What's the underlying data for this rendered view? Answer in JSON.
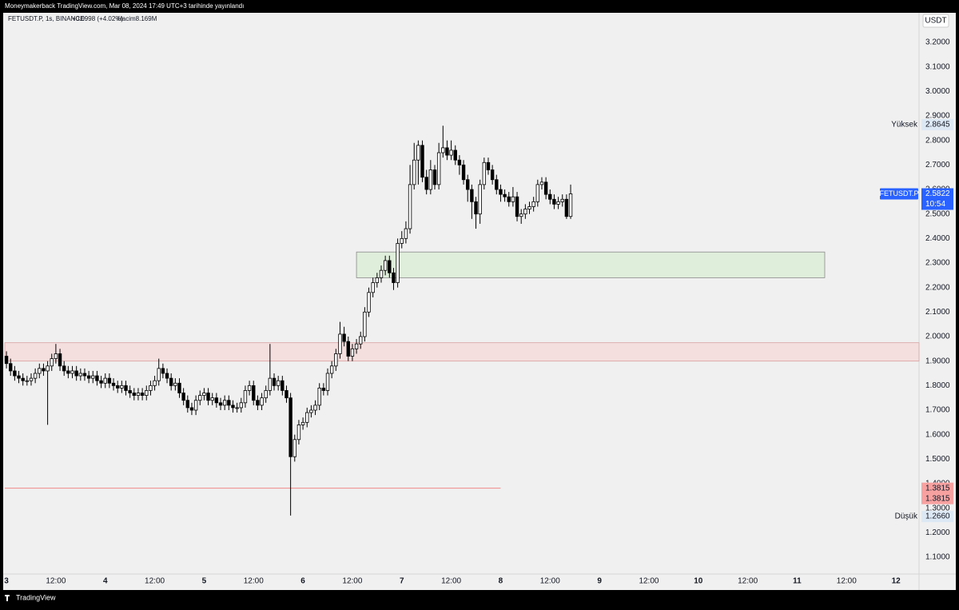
{
  "header": {
    "text": "Moneymakerback TradingView.com, Mar 08, 2024 17:49 UTC+3 tarihinde yayınlandı"
  },
  "footer": {
    "brand": "TradingView"
  },
  "chart_data": {
    "type": "candlestick",
    "title": "FETUSDT.P, 1s, BINANCE",
    "change": "+0.0998 (+4.02%)",
    "volume": "Hacim8.169M",
    "currency": "USDT",
    "up_color": "#ffffff",
    "down_color": "#000000",
    "open": [
      1.92,
      1.89,
      1.86,
      1.84,
      1.83,
      1.82,
      1.82,
      1.83,
      1.85,
      1.87,
      1.86,
      1.88,
      1.91,
      1.93,
      1.88,
      1.86,
      1.85,
      1.86,
      1.84,
      1.85,
      1.84,
      1.83,
      1.84,
      1.82,
      1.81,
      1.83,
      1.81,
      1.8,
      1.79,
      1.8,
      1.78,
      1.77,
      1.76,
      1.77,
      1.76,
      1.78,
      1.8,
      1.82,
      1.87,
      1.85,
      1.83,
      1.8,
      1.81,
      1.77,
      1.74,
      1.71,
      1.7,
      1.74,
      1.76,
      1.77,
      1.74,
      1.75,
      1.73,
      1.72,
      1.74,
      1.72,
      1.71,
      1.71,
      1.73,
      1.78,
      1.8,
      1.74,
      1.72,
      1.75,
      1.78,
      1.83,
      1.8,
      1.82,
      1.78,
      1.75,
      1.51,
      1.58,
      1.64,
      1.65,
      1.69,
      1.7,
      1.72,
      1.79,
      1.78,
      1.85,
      1.88,
      1.93,
      2.01,
      1.98,
      1.92,
      1.95,
      1.97,
      2.0,
      2.1,
      2.18,
      2.22,
      2.24,
      2.27,
      2.31,
      2.26,
      2.22,
      2.38,
      2.4,
      2.44,
      2.62,
      2.72,
      2.78,
      2.65,
      2.6,
      2.68,
      2.62,
      2.75,
      2.77,
      2.74,
      2.76,
      2.72,
      2.7,
      2.64,
      2.6,
      2.55,
      2.5,
      2.62,
      2.71,
      2.68,
      2.64,
      2.6,
      2.58,
      2.57,
      2.55,
      2.57,
      2.49,
      2.5,
      2.52,
      2.53,
      2.55,
      2.62,
      2.63,
      2.58,
      2.56,
      2.54,
      2.55,
      2.56,
      2.49
    ],
    "high": [
      1.94,
      1.91,
      1.88,
      1.86,
      1.85,
      1.84,
      1.85,
      1.87,
      1.89,
      1.89,
      1.9,
      1.93,
      1.97,
      1.95,
      1.9,
      1.88,
      1.88,
      1.88,
      1.87,
      1.87,
      1.86,
      1.86,
      1.86,
      1.84,
      1.85,
      1.85,
      1.83,
      1.82,
      1.82,
      1.82,
      1.8,
      1.79,
      1.79,
      1.79,
      1.8,
      1.82,
      1.84,
      1.91,
      1.89,
      1.87,
      1.85,
      1.83,
      1.83,
      1.79,
      1.76,
      1.73,
      1.76,
      1.78,
      1.79,
      1.79,
      1.77,
      1.77,
      1.75,
      1.76,
      1.76,
      1.74,
      1.73,
      1.75,
      1.8,
      1.82,
      1.82,
      1.76,
      1.77,
      1.8,
      1.97,
      1.85,
      1.84,
      1.84,
      1.8,
      1.77,
      1.6,
      1.66,
      1.67,
      1.71,
      1.72,
      1.74,
      1.81,
      1.81,
      1.87,
      1.9,
      1.95,
      2.06,
      2.04,
      2.0,
      1.97,
      1.99,
      2.02,
      2.12,
      2.2,
      2.24,
      2.26,
      2.29,
      2.33,
      2.33,
      2.28,
      2.4,
      2.43,
      2.47,
      2.7,
      2.79,
      2.8,
      2.8,
      2.68,
      2.72,
      2.7,
      2.79,
      2.86,
      2.8,
      2.8,
      2.78,
      2.74,
      2.72,
      2.66,
      2.62,
      2.57,
      2.64,
      2.73,
      2.73,
      2.7,
      2.66,
      2.62,
      2.6,
      2.59,
      2.61,
      2.59,
      2.52,
      2.54,
      2.55,
      2.57,
      2.64,
      2.65,
      2.65,
      2.6,
      2.58,
      2.57,
      2.58,
      2.58,
      2.62
    ],
    "low": [
      1.87,
      1.84,
      1.82,
      1.81,
      1.8,
      1.8,
      1.8,
      1.81,
      1.83,
      1.84,
      1.64,
      1.86,
      1.89,
      1.86,
      1.84,
      1.83,
      1.83,
      1.82,
      1.82,
      1.82,
      1.81,
      1.81,
      1.8,
      1.79,
      1.79,
      1.79,
      1.78,
      1.77,
      1.77,
      1.76,
      1.75,
      1.74,
      1.74,
      1.74,
      1.74,
      1.76,
      1.78,
      1.8,
      1.83,
      1.81,
      1.78,
      1.78,
      1.75,
      1.72,
      1.69,
      1.68,
      1.68,
      1.72,
      1.74,
      1.72,
      1.72,
      1.71,
      1.7,
      1.7,
      1.7,
      1.69,
      1.69,
      1.69,
      1.71,
      1.76,
      1.72,
      1.7,
      1.7,
      1.73,
      1.76,
      1.78,
      1.78,
      1.76,
      1.73,
      1.27,
      1.49,
      1.56,
      1.62,
      1.63,
      1.67,
      1.68,
      1.7,
      1.76,
      1.76,
      1.83,
      1.86,
      1.91,
      1.96,
      1.9,
      1.9,
      1.93,
      1.95,
      1.98,
      2.08,
      2.16,
      2.2,
      2.22,
      2.25,
      2.24,
      2.19,
      2.2,
      2.36,
      2.38,
      2.42,
      2.6,
      2.62,
      2.63,
      2.58,
      2.58,
      2.6,
      2.6,
      2.73,
      2.72,
      2.72,
      2.7,
      2.66,
      2.62,
      2.55,
      2.48,
      2.44,
      2.46,
      2.6,
      2.66,
      2.62,
      2.58,
      2.55,
      2.55,
      2.53,
      2.53,
      2.47,
      2.46,
      2.48,
      2.5,
      2.51,
      2.53,
      2.6,
      2.56,
      2.54,
      2.52,
      2.52,
      2.53,
      2.48,
      2.48
    ],
    "close": [
      1.89,
      1.86,
      1.84,
      1.83,
      1.82,
      1.82,
      1.83,
      1.85,
      1.87,
      1.86,
      1.88,
      1.91,
      1.93,
      1.88,
      1.86,
      1.85,
      1.86,
      1.84,
      1.85,
      1.84,
      1.83,
      1.84,
      1.82,
      1.81,
      1.83,
      1.81,
      1.8,
      1.79,
      1.8,
      1.78,
      1.77,
      1.76,
      1.77,
      1.76,
      1.78,
      1.8,
      1.82,
      1.87,
      1.85,
      1.83,
      1.8,
      1.81,
      1.77,
      1.74,
      1.71,
      1.7,
      1.74,
      1.76,
      1.77,
      1.74,
      1.75,
      1.73,
      1.72,
      1.74,
      1.72,
      1.71,
      1.71,
      1.73,
      1.78,
      1.8,
      1.74,
      1.72,
      1.75,
      1.78,
      1.83,
      1.8,
      1.82,
      1.78,
      1.75,
      1.51,
      1.58,
      1.64,
      1.65,
      1.69,
      1.7,
      1.72,
      1.79,
      1.78,
      1.85,
      1.88,
      1.93,
      2.01,
      1.98,
      1.92,
      1.95,
      1.97,
      2.0,
      2.1,
      2.18,
      2.22,
      2.24,
      2.27,
      2.31,
      2.26,
      2.22,
      2.38,
      2.4,
      2.44,
      2.62,
      2.72,
      2.78,
      2.65,
      2.6,
      2.68,
      2.62,
      2.75,
      2.77,
      2.74,
      2.76,
      2.72,
      2.7,
      2.64,
      2.6,
      2.55,
      2.5,
      2.62,
      2.71,
      2.68,
      2.64,
      2.6,
      2.58,
      2.57,
      2.55,
      2.57,
      2.49,
      2.5,
      2.52,
      2.53,
      2.55,
      2.62,
      2.63,
      2.58,
      2.56,
      2.54,
      2.55,
      2.56,
      2.49,
      2.5822
    ],
    "xlim": [
      -0.4,
      221.6
    ],
    "xticks": [
      {
        "value": 0,
        "label": "3"
      },
      {
        "value": 12,
        "label": "12:00"
      },
      {
        "value": 24,
        "label": "4"
      },
      {
        "value": 36,
        "label": "12:00"
      },
      {
        "value": 48,
        "label": "5"
      },
      {
        "value": 60,
        "label": "12:00"
      },
      {
        "value": 72,
        "label": "6"
      },
      {
        "value": 84,
        "label": "12:00"
      },
      {
        "value": 96,
        "label": "7"
      },
      {
        "value": 108,
        "label": "12:00"
      },
      {
        "value": 120,
        "label": "8"
      },
      {
        "value": 132,
        "label": "12:00"
      },
      {
        "value": 144,
        "label": "9"
      },
      {
        "value": 156,
        "label": "12:00"
      },
      {
        "value": 168,
        "label": "10"
      },
      {
        "value": 180,
        "label": "12:00"
      },
      {
        "value": 192,
        "label": "11"
      },
      {
        "value": 204,
        "label": "12:00"
      },
      {
        "value": 216,
        "label": "12"
      }
    ],
    "ylim": [
      1.0315,
      3.3207
    ],
    "yticks": [
      {
        "value": 1.1,
        "label": "1.1000"
      },
      {
        "value": 1.2,
        "label": "1.2000"
      },
      {
        "value": 1.3,
        "label": "1.3000"
      },
      {
        "value": 1.4,
        "label": "1.4000"
      },
      {
        "value": 1.5,
        "label": "1.5000"
      },
      {
        "value": 1.6,
        "label": "1.6000"
      },
      {
        "value": 1.7,
        "label": "1.7000"
      },
      {
        "value": 1.8,
        "label": "1.8000"
      },
      {
        "value": 1.9,
        "label": "1.9000"
      },
      {
        "value": 2.0,
        "label": "2.0000"
      },
      {
        "value": 2.1,
        "label": "2.1000"
      },
      {
        "value": 2.2,
        "label": "2.2000"
      },
      {
        "value": 2.3,
        "label": "2.3000"
      },
      {
        "value": 2.4,
        "label": "2.4000"
      },
      {
        "value": 2.5,
        "label": "2.5000"
      },
      {
        "value": 2.6,
        "label": "2.6000"
      },
      {
        "value": 2.7,
        "label": "2.7000"
      },
      {
        "value": 2.8,
        "label": "2.8000"
      },
      {
        "value": 2.9,
        "label": "2.9000"
      },
      {
        "value": 3.0,
        "label": "3.0000"
      },
      {
        "value": 3.1,
        "label": "3.1000"
      },
      {
        "value": 3.2,
        "label": "3.2000"
      }
    ],
    "zones": [
      {
        "y": [
          2.24,
          2.345
        ],
        "x": [
          85,
          198.7
        ],
        "color": "#dfeedb",
        "stroke": "#8a8a8a"
      },
      {
        "y": [
          1.9,
          1.975
        ],
        "x": [
          -0.4,
          221.6
        ],
        "color": "#f5dede",
        "stroke": "#d9a0a0"
      }
    ],
    "lines": [
      {
        "value": 1.3815,
        "x": [
          -0.4,
          120
        ],
        "color": "#f08a8a"
      }
    ],
    "markers": [
      {
        "name": "Yüksek",
        "value": 2.8645
      },
      {
        "name": "Düşük",
        "value": 1.266,
        "value_label": "1.2660"
      }
    ],
    "last_price": {
      "name": "FETUSDT.P",
      "value": 2.5822,
      "countdown": "10:54",
      "color": "#2962ff"
    },
    "price_tags": [
      {
        "value": 1.3815,
        "color": "#f7a1a1"
      },
      {
        "value": 1.3815,
        "color": "#f7a1a1"
      }
    ]
  }
}
